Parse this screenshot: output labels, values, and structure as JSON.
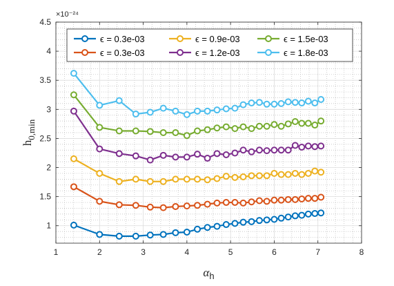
{
  "chart_data": {
    "type": "line",
    "exponent_label": "×10⁻²⁴",
    "xlabel": "α",
    "xlabel_sub": "h",
    "ylabel": "h",
    "ylabel_sub": "0,min",
    "xlim": [
      1,
      8
    ],
    "ylim": [
      0.7,
      4.5
    ],
    "xticks": [
      1,
      2,
      3,
      4,
      5,
      6,
      7,
      8
    ],
    "yticks": [
      1,
      1.5,
      2,
      2.5,
      3,
      3.5,
      4,
      4.5
    ],
    "grid": true,
    "minor_grid": true,
    "legend_position": "top",
    "x": [
      1.41,
      2.0,
      2.45,
      2.83,
      3.16,
      3.46,
      3.74,
      4.0,
      4.24,
      4.47,
      4.69,
      4.9,
      5.1,
      5.29,
      5.48,
      5.66,
      5.83,
      6.0,
      6.16,
      6.32,
      6.48,
      6.63,
      6.78,
      6.93,
      7.07
    ],
    "series": [
      {
        "name": "ϵ = 0.3e-03",
        "color": "#0072BD",
        "values": [
          1.01,
          0.85,
          0.82,
          0.82,
          0.84,
          0.85,
          0.88,
          0.89,
          0.94,
          0.97,
          0.99,
          1.02,
          1.04,
          1.06,
          1.07,
          1.09,
          1.1,
          1.11,
          1.13,
          1.15,
          1.17,
          1.18,
          1.2,
          1.21,
          1.22
        ]
      },
      {
        "name": "ϵ = 0.3e-03",
        "color": "#D95319",
        "values": [
          1.67,
          1.42,
          1.36,
          1.35,
          1.32,
          1.31,
          1.33,
          1.34,
          1.35,
          1.37,
          1.39,
          1.4,
          1.4,
          1.39,
          1.41,
          1.43,
          1.42,
          1.44,
          1.44,
          1.45,
          1.45,
          1.46,
          1.47,
          1.47,
          1.49
        ]
      },
      {
        "name": "ϵ = 0.9e-03",
        "color": "#EDB120",
        "values": [
          2.15,
          1.9,
          1.76,
          1.8,
          1.76,
          1.76,
          1.8,
          1.8,
          1.8,
          1.79,
          1.81,
          1.85,
          1.83,
          1.84,
          1.86,
          1.86,
          1.86,
          1.9,
          1.88,
          1.88,
          1.9,
          1.88,
          1.9,
          1.94,
          1.92
        ]
      },
      {
        "name": "ϵ = 1.2e-03",
        "color": "#7E2F8E",
        "values": [
          2.97,
          2.32,
          2.24,
          2.2,
          2.13,
          2.21,
          2.18,
          2.18,
          2.23,
          2.16,
          2.24,
          2.22,
          2.25,
          2.3,
          2.27,
          2.3,
          2.29,
          2.3,
          2.3,
          2.3,
          2.38,
          2.35,
          2.37,
          2.36,
          2.37
        ]
      },
      {
        "name": "ϵ = 1.5e-03",
        "color": "#77AC30",
        "values": [
          3.25,
          2.69,
          2.63,
          2.63,
          2.62,
          2.6,
          2.6,
          2.55,
          2.63,
          2.65,
          2.68,
          2.7,
          2.67,
          2.7,
          2.67,
          2.71,
          2.71,
          2.74,
          2.71,
          2.75,
          2.79,
          2.76,
          2.76,
          2.73,
          2.8
        ]
      },
      {
        "name": "ϵ = 1.8e-03",
        "color": "#4DBEEE",
        "values": [
          3.62,
          3.07,
          3.15,
          2.92,
          2.95,
          3.02,
          2.97,
          2.91,
          2.97,
          2.97,
          2.99,
          3.01,
          3.02,
          3.08,
          3.11,
          3.12,
          3.09,
          3.09,
          3.1,
          3.13,
          3.12,
          3.11,
          3.14,
          3.11,
          3.17
        ]
      }
    ]
  }
}
